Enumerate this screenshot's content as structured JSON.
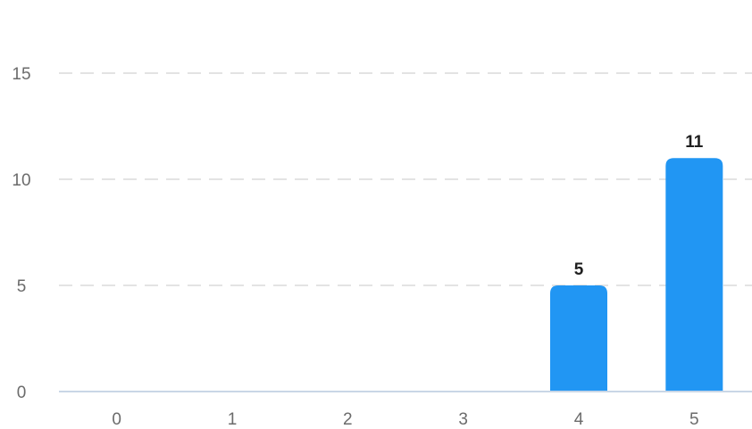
{
  "chart_data": {
    "type": "bar",
    "title": "",
    "xlabel": "",
    "ylabel": "",
    "categories": [
      "0",
      "1",
      "2",
      "3",
      "4",
      "5"
    ],
    "values": [
      0,
      0,
      0,
      0,
      5,
      11
    ],
    "data_labels": [
      "",
      "",
      "",
      "",
      "5",
      "11"
    ],
    "y_ticks": [
      0,
      5,
      10,
      15
    ],
    "ylim": [
      0,
      15
    ],
    "grid": true,
    "legend": "none",
    "bar_color": "#2196F3"
  }
}
